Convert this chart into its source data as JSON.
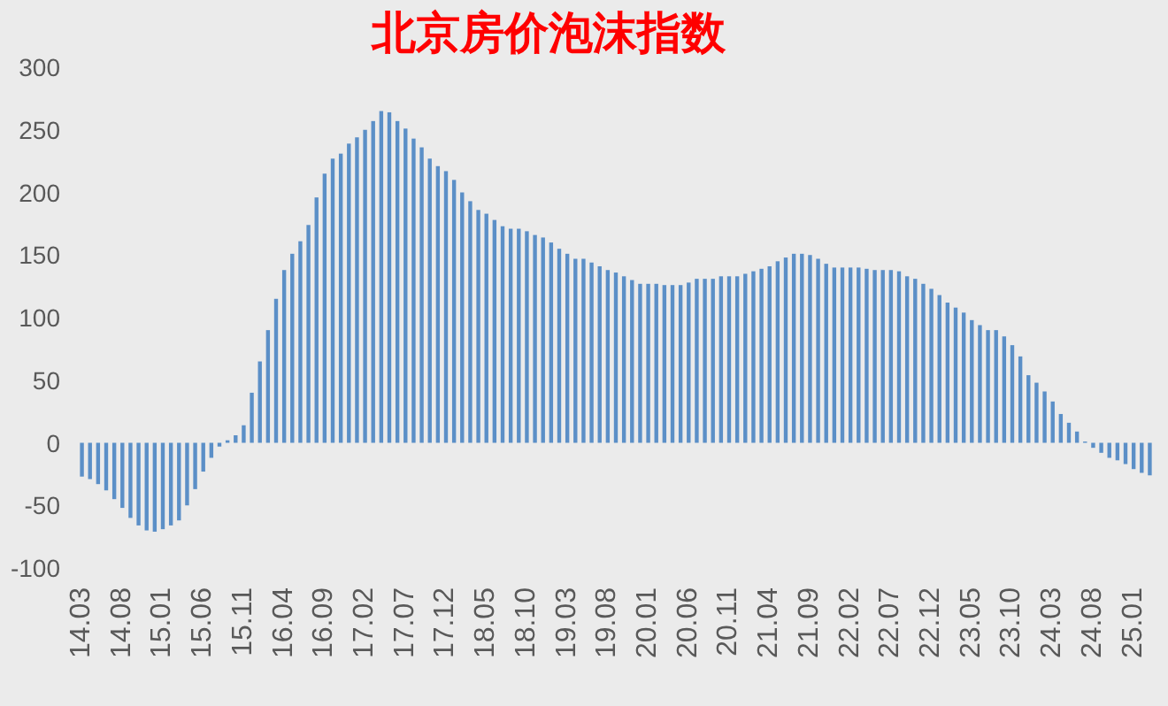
{
  "chart_data": {
    "type": "bar",
    "title": "北京房价泡沫指数",
    "categories": [
      "14.03",
      null,
      null,
      null,
      null,
      "14.08",
      null,
      null,
      null,
      null,
      "15.01",
      null,
      null,
      null,
      null,
      "15.06",
      null,
      null,
      null,
      null,
      "15.11",
      null,
      null,
      null,
      null,
      "16.04",
      null,
      null,
      null,
      null,
      "16.09",
      null,
      null,
      null,
      null,
      "17.02",
      null,
      null,
      null,
      null,
      "17.07",
      null,
      null,
      null,
      null,
      "17.12",
      null,
      null,
      null,
      null,
      "18.05",
      null,
      null,
      null,
      null,
      "18.10",
      null,
      null,
      null,
      null,
      "19.03",
      null,
      null,
      null,
      null,
      "19.08",
      null,
      null,
      null,
      null,
      "20.01",
      null,
      null,
      null,
      null,
      "20.06",
      null,
      null,
      null,
      null,
      "20.11",
      null,
      null,
      null,
      null,
      "21.04",
      null,
      null,
      null,
      null,
      "21.09",
      null,
      null,
      null,
      null,
      "22.02",
      null,
      null,
      null,
      null,
      "22.07",
      null,
      null,
      null,
      null,
      "22.12",
      null,
      null,
      null,
      null,
      "23.05",
      null,
      null,
      null,
      null,
      "23.10",
      null,
      null,
      null,
      null,
      "24.03",
      null,
      null,
      null,
      null,
      "24.08",
      null,
      null,
      null,
      null,
      "25.01",
      null,
      null
    ],
    "values": [
      -27,
      -29,
      -33,
      -38,
      -45,
      -52,
      -60,
      -66,
      -70,
      -71,
      -69,
      -66,
      -62,
      -50,
      -37,
      -23,
      -12,
      -3,
      2,
      6,
      14,
      40,
      65,
      90,
      115,
      138,
      151,
      161,
      174,
      196,
      215,
      227,
      231,
      239,
      244,
      250,
      257,
      265,
      264,
      257,
      251,
      243,
      236,
      227,
      221,
      217,
      210,
      200,
      193,
      186,
      183,
      178,
      173,
      171,
      171,
      169,
      166,
      164,
      160,
      155,
      151,
      147,
      147,
      144,
      141,
      138,
      136,
      133,
      130,
      127,
      127,
      127,
      126,
      126,
      126,
      128,
      131,
      131,
      131,
      133,
      133,
      133,
      135,
      137,
      139,
      141,
      145,
      148,
      151,
      151,
      150,
      147,
      143,
      140,
      140,
      140,
      140,
      139,
      138,
      138,
      138,
      137,
      133,
      131,
      127,
      123,
      118,
      112,
      108,
      104,
      98,
      94,
      90,
      90,
      85,
      78,
      69,
      54,
      48,
      41,
      33,
      23,
      16,
      9,
      1,
      -4,
      -8,
      -12,
      -14,
      -17,
      -21,
      -24,
      -26
    ],
    "color": "#5b8fc7",
    "ylim": [
      -100,
      300
    ],
    "yticks": [
      -100,
      -50,
      0,
      50,
      100,
      150,
      200,
      250,
      300
    ]
  }
}
